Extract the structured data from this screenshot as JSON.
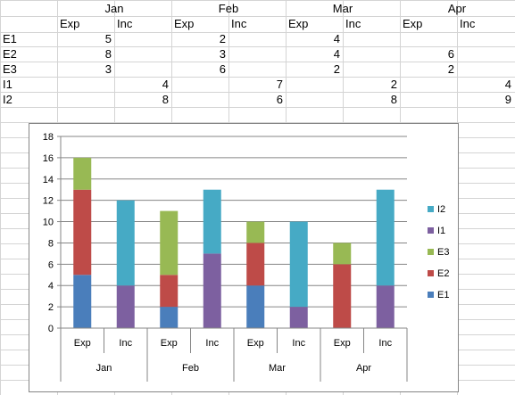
{
  "sheet": {
    "months": [
      "Jan",
      "Feb",
      "Mar",
      "Apr"
    ],
    "subheaders": [
      "Exp",
      "Inc",
      "Exp",
      "Inc",
      "Exp",
      "Inc",
      "Exp",
      "Inc"
    ],
    "rows": [
      {
        "label": "E1",
        "cells": [
          "5",
          "",
          "2",
          "",
          "4",
          "",
          "",
          ""
        ]
      },
      {
        "label": "E2",
        "cells": [
          "8",
          "",
          "3",
          "",
          "4",
          "",
          "6",
          ""
        ]
      },
      {
        "label": "E3",
        "cells": [
          "3",
          "",
          "6",
          "",
          "2",
          "",
          "2",
          ""
        ]
      },
      {
        "label": "I1",
        "cells": [
          "",
          "4",
          "",
          "7",
          "",
          "2",
          "",
          "4"
        ]
      },
      {
        "label": "I2",
        "cells": [
          "",
          "8",
          "",
          "6",
          "",
          "8",
          "",
          "9"
        ]
      }
    ]
  },
  "chart_data": {
    "type": "bar",
    "stacked": true,
    "categories": [
      "Exp",
      "Inc",
      "Exp",
      "Inc",
      "Exp",
      "Inc",
      "Exp",
      "Inc"
    ],
    "groups": [
      "Jan",
      "Feb",
      "Mar",
      "Apr"
    ],
    "series": [
      {
        "name": "E1",
        "color": "#4a7ebb",
        "values": [
          5,
          0,
          2,
          0,
          4,
          0,
          0,
          0
        ]
      },
      {
        "name": "E2",
        "color": "#be4b48",
        "values": [
          8,
          0,
          3,
          0,
          4,
          0,
          6,
          0
        ]
      },
      {
        "name": "E3",
        "color": "#98b954",
        "values": [
          3,
          0,
          6,
          0,
          2,
          0,
          2,
          0
        ]
      },
      {
        "name": "I1",
        "color": "#7d60a0",
        "values": [
          0,
          4,
          0,
          7,
          0,
          2,
          0,
          4
        ]
      },
      {
        "name": "I2",
        "color": "#46aac5",
        "values": [
          0,
          8,
          0,
          6,
          0,
          8,
          0,
          9
        ]
      }
    ],
    "ylim": [
      0,
      18
    ],
    "yticks": [
      "0",
      "2",
      "4",
      "6",
      "8",
      "10",
      "12",
      "14",
      "16",
      "18"
    ],
    "grid": true,
    "legend": "right",
    "legend_order": [
      "I2",
      "I1",
      "E3",
      "E2",
      "E1"
    ]
  }
}
